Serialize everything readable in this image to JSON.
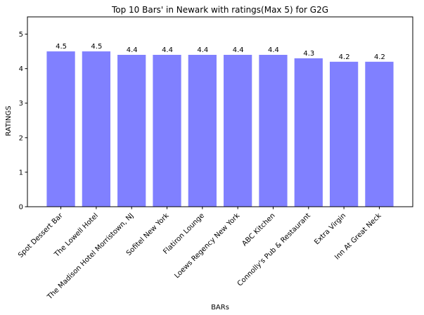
{
  "chart_data": {
    "type": "bar",
    "title": "Top 10 Bars' in Newark with ratings(Max 5) for G2G",
    "xlabel": "BARs",
    "ylabel": "RATINGS",
    "categories": [
      "Spot Dessert Bar",
      "The Lowell Hotel",
      "The Madison Hotel Morristown, NJ",
      "Sofitel New York",
      "Flatiron Lounge",
      "Loews Regency New York",
      "ABC Kitchen",
      "Connolly's Pub & Restaurant",
      "Extra Virgin",
      "Inn At Great Neck"
    ],
    "values": [
      4.5,
      4.5,
      4.4,
      4.4,
      4.4,
      4.4,
      4.4,
      4.3,
      4.2,
      4.2
    ],
    "data_labels": [
      "4.5",
      "4.5",
      "4.4",
      "4.4",
      "4.4",
      "4.4",
      "4.4",
      "4.3",
      "4.2",
      "4.2"
    ],
    "ylim": [
      0,
      5.5
    ],
    "yticks": [
      0,
      1,
      2,
      3,
      4,
      5
    ],
    "ytick_labels": [
      "0",
      "1",
      "2",
      "3",
      "4",
      "5"
    ],
    "grid": false,
    "bar_color": "#8080ff"
  }
}
